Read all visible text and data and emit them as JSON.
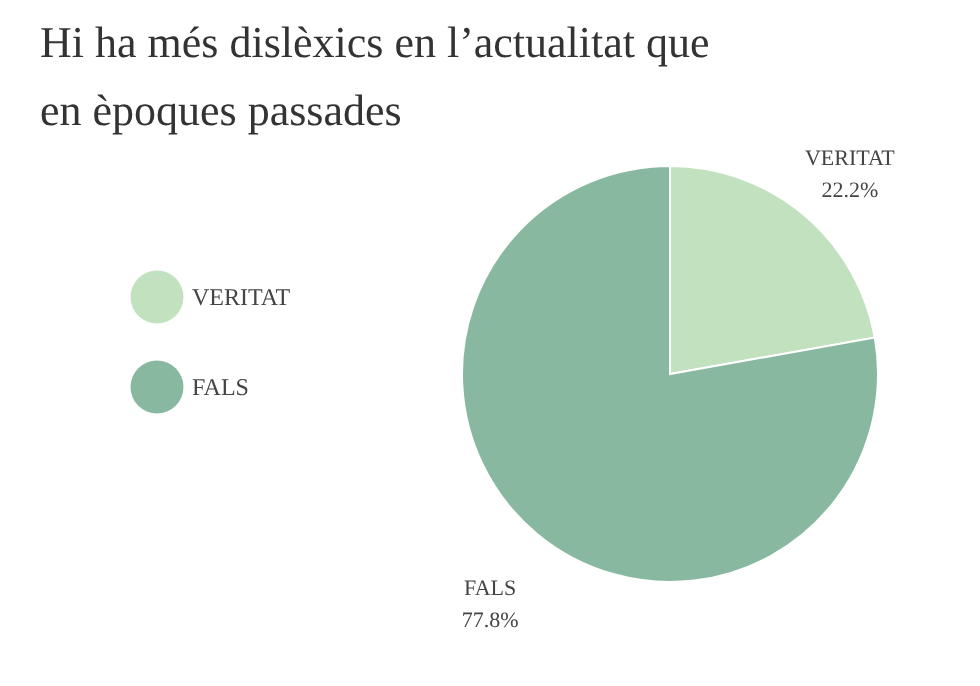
{
  "chart_data": {
    "type": "pie",
    "title": [
      "Hi ha més dislèxics en l’actualitat que",
      "en èpoques passades"
    ],
    "categories": [
      "VERITAT",
      "FALS"
    ],
    "values": [
      22.2,
      77.8
    ],
    "colors": [
      "#c2e2bf",
      "#88b9a0"
    ],
    "value_labels": [
      "22.2%",
      "77.8%"
    ],
    "legend": "left"
  }
}
